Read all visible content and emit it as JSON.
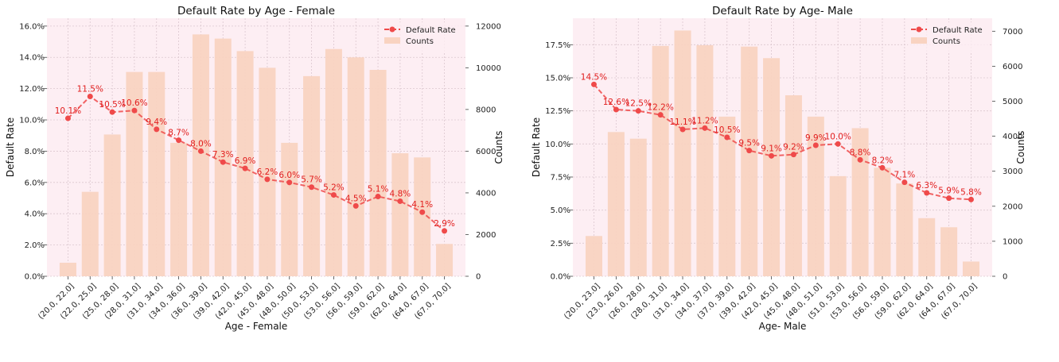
{
  "chart_data": [
    {
      "type": "bar+line",
      "title": "Default Rate by Age - Female",
      "xlabel": "Age - Female",
      "ylabel": "Default Rate",
      "y2label": "Counts",
      "categories": [
        "(20.0, 22.0]",
        "(22.0, 25.0]",
        "(25.0, 28.0]",
        "(28.0, 31.0]",
        "(31.0, 34.0]",
        "(34.0, 36.0]",
        "(36.0, 39.0]",
        "(39.0, 42.0]",
        "(42.0, 45.0]",
        "(45.0, 48.0]",
        "(48.0, 50.0]",
        "(50.0, 53.0]",
        "(53.0, 56.0]",
        "(56.0, 59.0]",
        "(59.0, 62.0]",
        "(62.0, 64.0]",
        "(64.0, 67.0]",
        "(67.0, 70.0]"
      ],
      "series": [
        {
          "name": "Default Rate",
          "kind": "line",
          "axis": "left",
          "values": [
            10.1,
            11.5,
            10.5,
            10.6,
            9.4,
            8.7,
            8.0,
            7.3,
            6.9,
            6.2,
            6.0,
            5.7,
            5.2,
            4.5,
            5.1,
            4.8,
            4.1,
            2.9
          ]
        },
        {
          "name": "Counts",
          "kind": "bar",
          "axis": "right",
          "values": [
            650,
            4050,
            6800,
            9800,
            9800,
            6400,
            11600,
            11400,
            10800,
            10000,
            6400,
            9600,
            10900,
            10500,
            9900,
            5900,
            5700,
            1550
          ]
        }
      ],
      "data_labels": [
        "10.1%",
        "11.5%",
        "10.5%",
        "10.6%",
        "9.4%",
        "8.7%",
        "8.0%",
        "7.3%",
        "6.9%",
        "6.2%",
        "6.0%",
        "5.7%",
        "5.2%",
        "4.5%",
        "5.1%",
        "4.8%",
        "4.1%",
        "2.9%"
      ],
      "ylim": [
        0,
        16.5
      ],
      "yticks": [
        0,
        2,
        4,
        6,
        8,
        10,
        12,
        14,
        16
      ],
      "ytick_labels": [
        "0.0%",
        "2.0%",
        "4.0%",
        "6.0%",
        "8.0%",
        "10.0%",
        "12.0%",
        "14.0%",
        "16.0%"
      ],
      "y2lim": [
        0,
        12375
      ],
      "y2ticks": [
        0,
        2000,
        4000,
        6000,
        8000,
        10000,
        12000
      ],
      "y2tick_labels": [
        "0",
        "2000",
        "4000",
        "6000",
        "8000",
        "10000",
        "12000"
      ],
      "legend": {
        "position": "top-right",
        "entries": [
          "Default Rate",
          "Counts"
        ]
      },
      "grid": true
    },
    {
      "type": "bar+line",
      "title": "Default Rate by Age- Male",
      "xlabel": "Age- Male",
      "ylabel": "Default Rate",
      "y2label": "Counts",
      "categories": [
        "(20.0, 23.0]",
        "(23.0, 26.0]",
        "(26.0, 28.0]",
        "(28.0, 31.0]",
        "(31.0, 34.0]",
        "(34.0, 37.0]",
        "(37.0, 39.0]",
        "(39.0, 42.0]",
        "(42.0, 45.0]",
        "(45.0, 48.0]",
        "(48.0, 51.0]",
        "(51.0, 53.0]",
        "(53.0, 56.0]",
        "(56.0, 59.0]",
        "(59.0, 62.0]",
        "(62.0, 64.0]",
        "(64.0, 67.0]",
        "(67.0, 70.0]"
      ],
      "series": [
        {
          "name": "Default Rate",
          "kind": "line",
          "axis": "left",
          "values": [
            14.5,
            12.6,
            12.5,
            12.2,
            11.1,
            11.2,
            10.5,
            9.5,
            9.1,
            9.2,
            9.9,
            10.0,
            8.8,
            8.2,
            7.1,
            6.3,
            5.9,
            5.8
          ]
        },
        {
          "name": "Counts",
          "kind": "bar",
          "axis": "right",
          "values": [
            1150,
            4120,
            3930,
            6580,
            7020,
            6600,
            4560,
            6560,
            6230,
            5170,
            4560,
            2860,
            4230,
            3100,
            2650,
            1660,
            1400,
            420
          ]
        }
      ],
      "data_labels": [
        "14.5%",
        "12.6%",
        "12.5%",
        "12.2%",
        "11.1%",
        "11.2%",
        "10.5%",
        "9.5%",
        "9.1%",
        "9.2%",
        "9.9%",
        "10.0%",
        "8.8%",
        "8.2%",
        "7.1%",
        "6.3%",
        "5.9%",
        "5.8%"
      ],
      "ylim": [
        0,
        19.5
      ],
      "yticks": [
        0,
        2.5,
        5,
        7.5,
        10,
        12.5,
        15,
        17.5
      ],
      "ytick_labels": [
        "0.0%",
        "2.5%",
        "5.0%",
        "7.5%",
        "10.0%",
        "12.5%",
        "15.0%",
        "17.5%"
      ],
      "y2lim": [
        0,
        7370
      ],
      "y2ticks": [
        0,
        1000,
        2000,
        3000,
        4000,
        5000,
        6000,
        7000
      ],
      "y2tick_labels": [
        "0",
        "1000",
        "2000",
        "3000",
        "4000",
        "5000",
        "6000",
        "7000"
      ],
      "legend": {
        "position": "top-right",
        "entries": [
          "Default Rate",
          "Counts"
        ]
      },
      "grid": true
    }
  ],
  "colors": {
    "plot_background": "#fdeef3",
    "bar_fill": "#f9d3c1",
    "line": "#ef4a4a",
    "data_label": "#e11d1d",
    "grid": "#dcc7cf",
    "axis_text": "#222222"
  }
}
